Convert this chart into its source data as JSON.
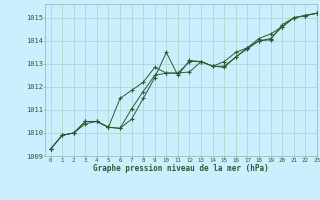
{
  "title": "Graphe pression niveau de la mer (hPa)",
  "background_color": "#cceeff",
  "grid_color": "#aaddcc",
  "line_color": "#2d5a2d",
  "xlim": [
    -0.5,
    23
  ],
  "ylim": [
    1009,
    1015.6
  ],
  "yticks": [
    1009,
    1010,
    1011,
    1012,
    1013,
    1014,
    1015
  ],
  "xticks": [
    0,
    1,
    2,
    3,
    4,
    5,
    6,
    7,
    8,
    9,
    10,
    11,
    12,
    13,
    14,
    15,
    16,
    17,
    18,
    19,
    20,
    21,
    22,
    23
  ],
  "series": [
    [
      1009.3,
      1009.9,
      1010.0,
      1010.5,
      1010.5,
      1010.25,
      1010.2,
      1010.6,
      1011.5,
      1012.4,
      1013.5,
      1012.5,
      1013.15,
      1013.1,
      1012.9,
      1012.85,
      1013.3,
      1013.65,
      1014.0,
      1014.05,
      1014.7,
      1015.0,
      1015.1,
      1015.2
    ],
    [
      1009.3,
      1009.9,
      1010.0,
      1010.4,
      1010.5,
      1010.25,
      1010.2,
      1011.05,
      1011.8,
      1012.5,
      1012.6,
      1012.6,
      1012.65,
      1013.1,
      1012.9,
      1012.9,
      1013.3,
      1013.7,
      1014.0,
      1014.1,
      1014.6,
      1015.0,
      1015.1,
      1015.2
    ],
    [
      1009.3,
      1009.9,
      1010.0,
      1010.5,
      1010.5,
      1010.25,
      1011.5,
      1011.85,
      1012.2,
      1012.85,
      1012.6,
      1012.6,
      1013.1,
      1013.1,
      1012.9,
      1013.1,
      1013.5,
      1013.7,
      1014.1,
      1014.3,
      1014.6,
      1015.0,
      1015.1,
      1015.2
    ]
  ]
}
